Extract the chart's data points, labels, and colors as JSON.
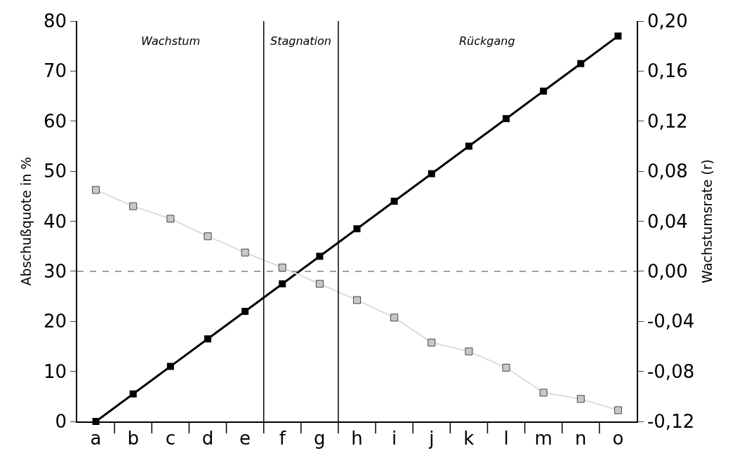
{
  "chart_data": {
    "type": "line",
    "ylabel": "Abschußquote in %",
    "y2label": "Wachstumsrate (r)",
    "categories": [
      "a",
      "b",
      "c",
      "d",
      "e",
      "f",
      "g",
      "h",
      "i",
      "j",
      "k",
      "l",
      "m",
      "n",
      "o"
    ],
    "series": [
      {
        "color": "#000000",
        "values": [
          0,
          5.5,
          11,
          16.5,
          22,
          27.5,
          33,
          38.5,
          44,
          49.5,
          55,
          60.5,
          66,
          71.5,
          77
        ]
      },
      {
        "color": "#c8c8c8",
        "axis": "y2",
        "values": [
          0.065,
          0.052,
          0.042,
          0.028,
          0.015,
          0.003,
          -0.01,
          -0.023,
          -0.037,
          -0.057,
          -0.064,
          -0.077,
          -0.097,
          -0.102,
          -0.111
        ]
      }
    ],
    "ylim": [
      0,
      80
    ],
    "yticks": [
      0,
      10,
      20,
      30,
      40,
      50,
      60,
      70,
      80
    ],
    "y2lim": [
      -0.12,
      0.2
    ],
    "y2ticks": [
      {
        "value": -0.12,
        "label": "-0,12"
      },
      {
        "value": -0.08,
        "label": "-0,08"
      },
      {
        "value": -0.04,
        "label": "-0,04"
      },
      {
        "value": 0,
        "label": "0,00"
      },
      {
        "value": 0.04,
        "label": "0,04"
      },
      {
        "value": 0.08,
        "label": "0,08"
      },
      {
        "value": 0.12,
        "label": "0,12"
      },
      {
        "value": 0.16,
        "label": "0,16"
      },
      {
        "value": 0.2,
        "label": "0,20"
      }
    ],
    "ref_lines": [
      {
        "axis": "y2",
        "value": 0,
        "color": "#808080",
        "line_style": "dashed"
      }
    ],
    "annotations": [
      "Wachstum",
      "Stagnation",
      "Rückgang"
    ],
    "marker": "square",
    "grid": false
  }
}
